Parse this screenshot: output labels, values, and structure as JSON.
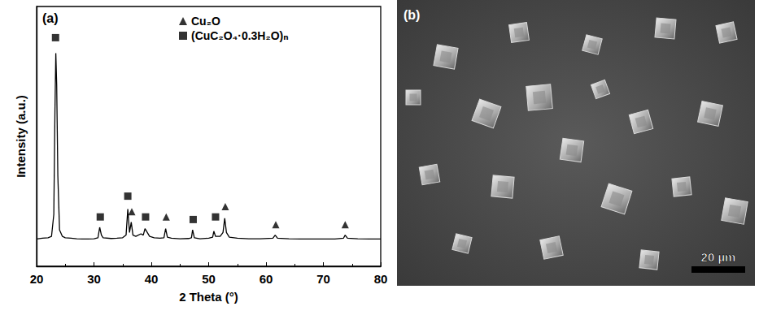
{
  "chart_data": {
    "type": "line",
    "panel_label": "(a)",
    "x_label": "2 Theta (°)",
    "y_label": "Intensity (a.u.)",
    "xlim": [
      20,
      80
    ],
    "xticks": [
      20,
      30,
      40,
      50,
      60,
      70,
      80
    ],
    "ylim": [
      0,
      100
    ],
    "yticks": [],
    "tick_labels": "x",
    "grid": false,
    "legend": "upper center",
    "series": [
      {
        "type": "line",
        "color": "#000000",
        "line_style": "solid",
        "x": [
          20,
          21,
          22,
          22.6,
          23.0,
          23.2,
          23.35,
          23.5,
          23.7,
          24.0,
          24.5,
          25,
          26,
          27,
          28,
          29,
          30,
          30.7,
          31.0,
          31.3,
          31.6,
          33,
          34,
          35,
          35.6,
          35.9,
          36.2,
          36.5,
          36.8,
          37.3,
          38.2,
          38.6,
          38.9,
          39.3,
          39.7,
          40.5,
          41.5,
          42.2,
          42.5,
          42.8,
          43.5,
          45,
          46.5,
          47.0,
          47.2,
          47.5,
          48.5,
          50,
          50.7,
          50.9,
          51.2,
          52.0,
          52.5,
          52.8,
          53.1,
          53.6,
          55,
          57,
          59,
          61.2,
          61.6,
          62.0,
          64,
          66,
          68,
          70,
          72,
          73.5,
          73.8,
          74.2,
          76,
          78,
          80
        ],
        "values": [
          10.5,
          10.8,
          11,
          11.5,
          20,
          60,
          82,
          70,
          35,
          14,
          11.5,
          11,
          10.8,
          10.6,
          10.5,
          10.5,
          10.6,
          11,
          15,
          12,
          11,
          10.7,
          10.8,
          11,
          12,
          22,
          13,
          17,
          12,
          11.5,
          12.5,
          12,
          14.5,
          13,
          11.5,
          11,
          10.8,
          11,
          14.5,
          11.2,
          10.8,
          10.6,
          10.7,
          11,
          14,
          11,
          10.6,
          10.8,
          11.2,
          13.5,
          11.5,
          11.5,
          13,
          18.5,
          13,
          11.2,
          10.8,
          10.6,
          10.6,
          10.8,
          12,
          10.8,
          10.6,
          10.5,
          10.5,
          10.5,
          10.5,
          10.8,
          12,
          10.8,
          10.6,
          10.5,
          10.5
        ]
      },
      {
        "name": "Cu₂O",
        "type": "scatter",
        "marker": "triangle",
        "color": "#000000",
        "x": [
          36.6,
          42.6,
          52.9,
          61.7,
          73.8
        ],
        "values": [
          21,
          19,
          23,
          16,
          16
        ]
      },
      {
        "name": "(CuC₂O₄·0.3H₂O)ₙ",
        "type": "scatter",
        "marker": "square",
        "color": "#000000",
        "x": [
          23.3,
          31.1,
          35.9,
          39.0,
          47.3,
          51.2
        ],
        "values": [
          88,
          19,
          27,
          19,
          18,
          19
        ]
      }
    ]
  },
  "image_panel": {
    "panel_label": "(b)",
    "scale_bar": "20 µm"
  }
}
